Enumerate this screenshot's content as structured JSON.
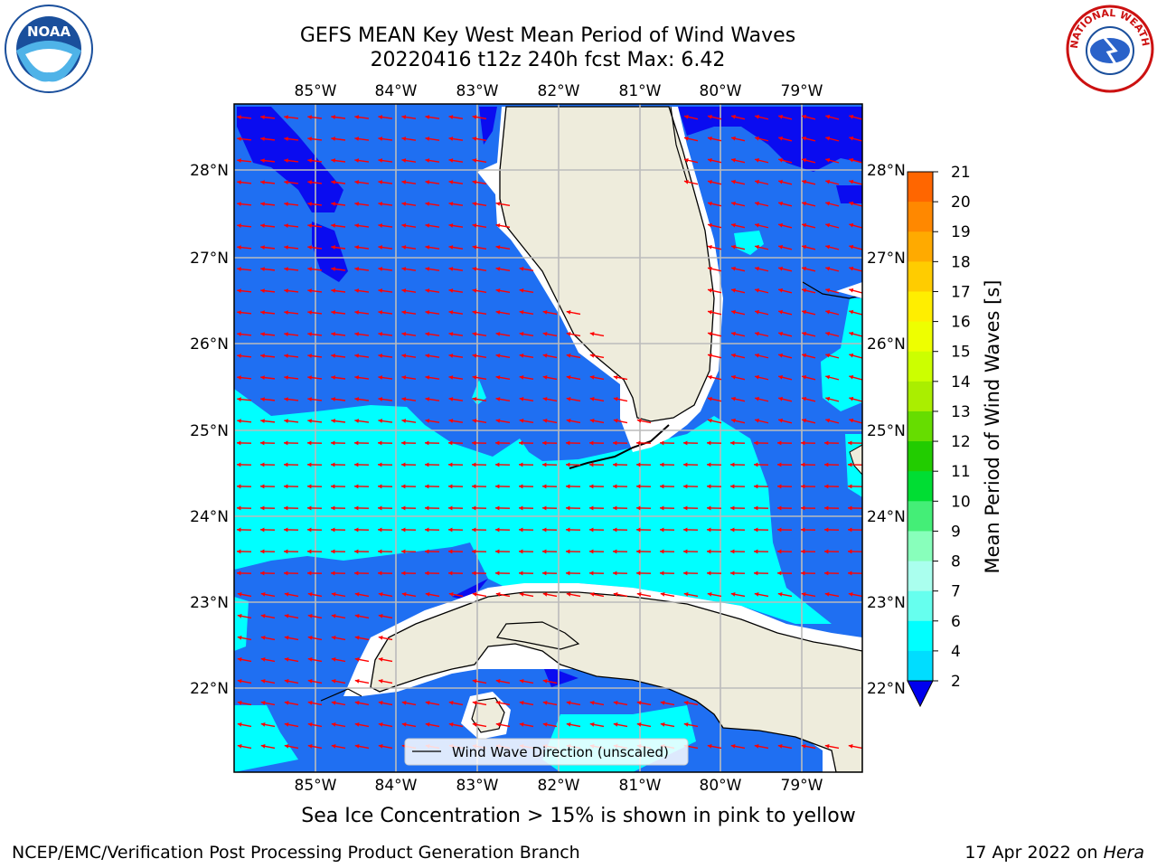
{
  "title": {
    "line1": "GEFS MEAN Key West Mean Period of Wind Waves",
    "line2": "20220416 t12z 240h fcst   Max: 6.42"
  },
  "logos": {
    "left": "NOAA",
    "right": "NATIONAL WEATHER SERVICE"
  },
  "map": {
    "lon_labels": [
      "85°W",
      "84°W",
      "83°W",
      "82°W",
      "81°W",
      "80°W",
      "79°W"
    ],
    "lat_labels": [
      "28°N",
      "27°N",
      "26°N",
      "25°N",
      "24°N",
      "23°N",
      "22°N"
    ],
    "legend_label": "Wind Wave Direction (unscaled)",
    "land_color": "#eeecdc",
    "arrow_color": "#ff0000"
  },
  "colorbar": {
    "label": "Mean Period of Wind Waves [s]",
    "ticks": [
      "21",
      "20",
      "19",
      "18",
      "17",
      "16",
      "15",
      "14",
      "13",
      "12",
      "11",
      "10",
      "9",
      "8",
      "7",
      "6",
      "4",
      "2"
    ],
    "colors": [
      "#ff0000",
      "#ff2200",
      "#ff4400",
      "#ff6600",
      "#ff8800",
      "#ffaa00",
      "#ffcc00",
      "#ffee00",
      "#eeff00",
      "#ccff00",
      "#aaee00",
      "#66dd00",
      "#22cc00",
      "#00dd33",
      "#44ee77",
      "#88ffbb",
      "#aaffee",
      "#66ffee",
      "#00ffff",
      "#00ddff",
      "#1177ff",
      "#0000ee"
    ]
  },
  "caption": "Sea Ice Concentration > 15% is shown in pink to yellow",
  "footer": {
    "left": "NCEP/EMC/Verification Post Processing Product Generation Branch",
    "right_date": "17 Apr 2022 on ",
    "right_host": "Hera"
  }
}
